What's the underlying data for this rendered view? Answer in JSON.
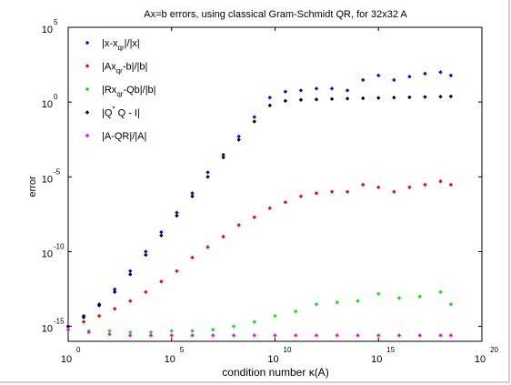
{
  "chart_data": {
    "type": "scatter",
    "title": "Ax=b errors, using classical Gram-Schmidt QR, for 32x32 A",
    "xlabel": "condition number κ(A)",
    "ylabel": "error",
    "x_scale": "log",
    "y_scale": "log",
    "xlim": [
      1,
      1e+20
    ],
    "ylim": [
      1e-16,
      100000.0
    ],
    "x_ticks": [
      {
        "value": 1,
        "base": "10",
        "exp": "0"
      },
      {
        "value": 100000,
        "base": "10",
        "exp": "5"
      },
      {
        "value": 10000000000.0,
        "base": "10",
        "exp": "10"
      },
      {
        "value": 1000000000000000.0,
        "base": "10",
        "exp": "15"
      },
      {
        "value": 1e+20,
        "base": "10",
        "exp": "20"
      }
    ],
    "y_ticks": [
      {
        "value": 1e-15,
        "base": "10",
        "exp": "-15"
      },
      {
        "value": 1e-10,
        "base": "10",
        "exp": "-10"
      },
      {
        "value": 1e-05,
        "base": "10",
        "exp": "-5"
      },
      {
        "value": 1,
        "base": "10",
        "exp": "0"
      },
      {
        "value": 100000,
        "base": "10",
        "exp": "5"
      }
    ],
    "grid": false,
    "legend_position": "top-left",
    "series": [
      {
        "legend_main": "|x-x",
        "legend_sub": "qr",
        "legend_tail": "|/|x|",
        "color": "#0000ff",
        "x": [
          1.0,
          5.6,
          31.6,
          178,
          1000,
          5620,
          31600,
          178000,
          1000000,
          5620000,
          31600000,
          178000000,
          1000000000.0,
          5620000000.0,
          31600000000.0,
          178000000000.0,
          1000000000000.0,
          5620000000000.0,
          31600000000000.0,
          178000000000000.0,
          1000000000000000.0,
          5620000000000000.0,
          3.16e+16,
          1.78e+17,
          1e+18,
          3.16e+18
        ],
        "y": [
          1e-15,
          5e-15,
          3e-14,
          3e-13,
          5e-12,
          1e-10,
          2e-09,
          4e-08,
          8e-07,
          2e-05,
          0.0003,
          0.005,
          0.1,
          2,
          5,
          6,
          8,
          8,
          6,
          30,
          60,
          30,
          50,
          80,
          100,
          60
        ]
      },
      {
        "legend_main": "|Ax",
        "legend_sub": "qr",
        "legend_tail": "-b|/|b|",
        "color": "#ff0000",
        "x": [
          1.0,
          5.6,
          31.6,
          178,
          1000,
          5620,
          31600,
          178000,
          1000000,
          5620000,
          31600000,
          178000000,
          1000000000.0,
          5620000000.0,
          31600000000.0,
          178000000000.0,
          1000000000000.0,
          5620000000000.0,
          31600000000000.0,
          178000000000000.0,
          1000000000000000.0,
          5620000000000000.0,
          3.16e+16,
          1.78e+17,
          1e+18,
          3.16e+18
        ],
        "y": [
          1e-15,
          2e-15,
          5e-15,
          1.5e-14,
          5e-14,
          2e-13,
          1e-12,
          5e-12,
          4e-11,
          2e-10,
          1e-09,
          6e-09,
          2e-08,
          8e-08,
          2e-07,
          5e-07,
          8e-07,
          1e-06,
          1e-06,
          3e-06,
          2e-06,
          1e-06,
          2e-06,
          3e-06,
          5e-06,
          3e-06
        ]
      },
      {
        "legend_main": "|Rx",
        "legend_sub": "qr",
        "legend_tail": "-Qb|/|b|",
        "color": "#00ee00",
        "x": [
          1.0,
          10,
          100,
          1000,
          10000,
          100000,
          1000000,
          10000000,
          100000000,
          1000000000.0,
          10000000000.0,
          100000000000.0,
          1000000000000.0,
          10000000000000.0,
          100000000000000.0,
          1000000000000000.0,
          1e+16,
          1e+17,
          1e+18,
          3.16e+18
        ],
        "y": [
          6e-16,
          5e-16,
          5e-16,
          4e-16,
          4e-16,
          5e-16,
          5e-16,
          6e-16,
          1e-15,
          2e-15,
          5e-15,
          1e-14,
          3e-14,
          4e-14,
          5e-14,
          1.5e-13,
          8e-14,
          1e-13,
          2e-13,
          3e-14
        ]
      },
      {
        "legend_main": "|Q",
        "legend_sup": "*",
        "legend_tail": " Q - I|",
        "color": "#000000",
        "x": [
          1.0,
          5.6,
          31.6,
          178,
          1000,
          5620,
          31600,
          178000,
          1000000,
          5620000,
          31600000,
          178000000,
          1000000000.0,
          5620000000.0,
          31600000000.0,
          178000000000.0,
          1000000000000.0,
          5620000000000.0,
          31600000000000.0,
          178000000000000.0,
          1000000000000000.0,
          5620000000000000.0,
          3.16e+16,
          1.78e+17,
          1e+18,
          3.16e+18
        ],
        "y": [
          1e-15,
          4e-15,
          2.5e-14,
          2e-13,
          3e-12,
          6e-11,
          1.2e-09,
          2.5e-08,
          5e-07,
          1e-05,
          0.0002,
          0.003,
          0.05,
          0.6,
          1.2,
          1.4,
          1.5,
          1.6,
          1.7,
          1.8,
          1.9,
          2.0,
          2.1,
          2.2,
          2.3,
          2.4
        ]
      },
      {
        "legend_main": "|A-QR|/|A|",
        "color": "#ff00ff",
        "x": [
          1.0,
          10,
          100,
          1000,
          10000,
          100000,
          1000000,
          10000000,
          100000000,
          1000000000.0,
          10000000000.0,
          100000000000.0,
          1000000000000.0,
          10000000000000.0,
          100000000000000.0,
          1000000000000000.0,
          1e+16,
          1e+17,
          1e+18,
          3.16e+18
        ],
        "y": [
          6e-16,
          4e-16,
          3e-16,
          2.5e-16,
          2.5e-16,
          2.5e-16,
          2.5e-16,
          2.5e-16,
          2.5e-16,
          2.5e-16,
          2.5e-16,
          2.5e-16,
          2.5e-16,
          2.5e-16,
          2.5e-16,
          2.5e-16,
          2.5e-16,
          2.5e-16,
          2.5e-16,
          2.5e-16
        ]
      }
    ]
  }
}
